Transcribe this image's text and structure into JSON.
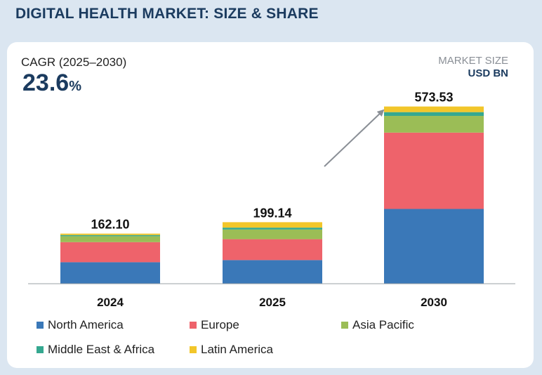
{
  "title": "DIGITAL HEALTH MARKET: SIZE & SHARE",
  "cagr": {
    "label": "CAGR (2025–2030)",
    "value": "23.6",
    "unit": "%"
  },
  "market_size": {
    "label": "MARKET SIZE",
    "unit": "USD BN"
  },
  "colors": {
    "north_america": "#3a78b8",
    "europe": "#ee636b",
    "asia_pacific": "#9bbd56",
    "middle_east_africa": "#35a890",
    "latin_america": "#f2c62a"
  },
  "legend": [
    {
      "name": "North America",
      "color": "#3a78b8"
    },
    {
      "name": "Europe",
      "color": "#ee636b"
    },
    {
      "name": "Asia Pacific",
      "color": "#9bbd56"
    },
    {
      "name": "Middle East & Africa",
      "color": "#35a890"
    },
    {
      "name": "Latin America",
      "color": "#f2c62a"
    }
  ],
  "chart_data": {
    "type": "bar",
    "stacked": true,
    "title": "DIGITAL HEALTH MARKET: SIZE & SHARE",
    "ylabel": "MARKET SIZE USD BN",
    "categories": [
      "2024",
      "2025",
      "2030"
    ],
    "totals": [
      "162.10",
      "199.14",
      "573.53"
    ],
    "total_values": [
      162.1,
      199.14,
      573.53
    ],
    "series": [
      {
        "name": "North America",
        "values": [
          69.6,
          76.5,
          242.0
        ]
      },
      {
        "name": "Europe",
        "values": [
          64.9,
          67.6,
          247.0
        ]
      },
      {
        "name": "Asia Pacific",
        "values": [
          19.2,
          31.3,
          54.1
        ]
      },
      {
        "name": "Middle East & Africa",
        "values": [
          3.8,
          6.1,
          12.2
        ]
      },
      {
        "name": "Latin America",
        "values": [
          4.6,
          17.6,
          18.2
        ]
      }
    ],
    "ylim": [
      0,
      600
    ],
    "grid": false,
    "legend_position": "bottom",
    "annotation": "growth arrow from 2025 to 2030"
  }
}
